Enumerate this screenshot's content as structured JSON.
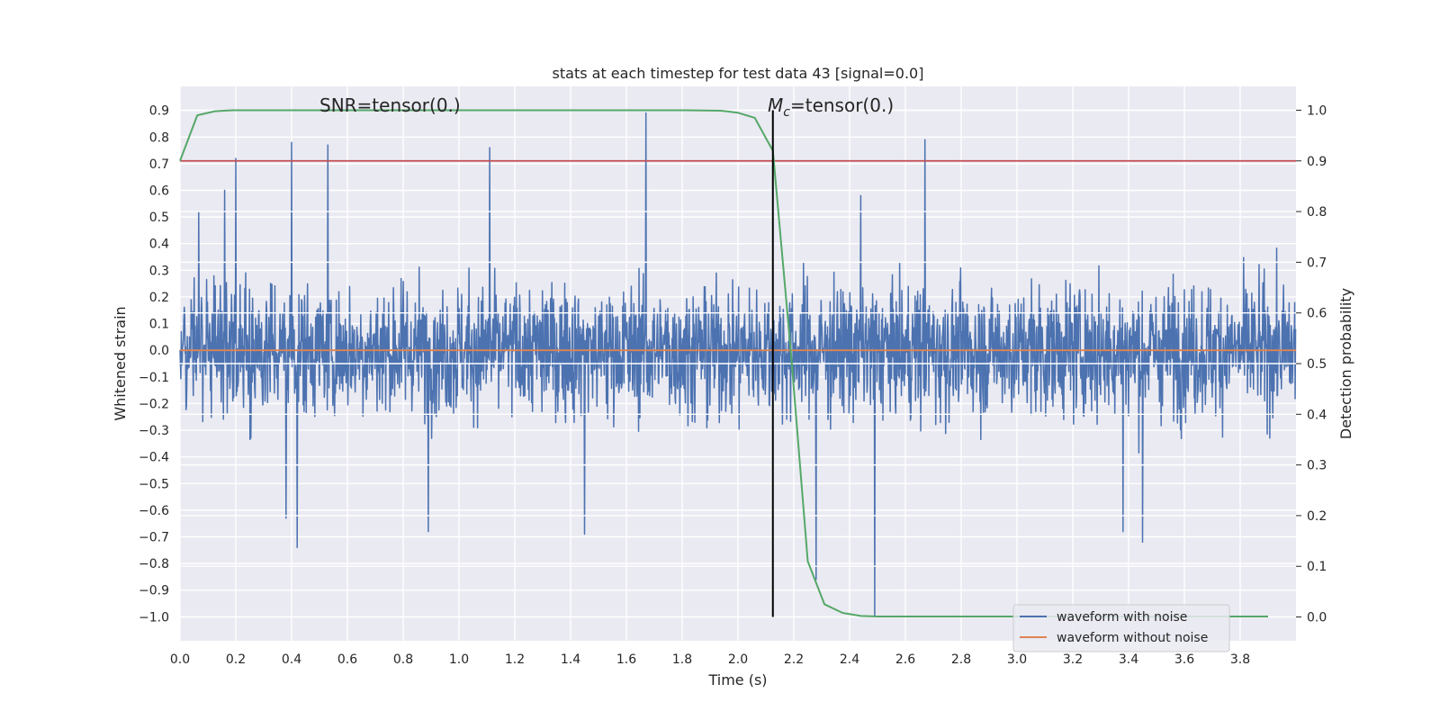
{
  "chart_data": {
    "type": "line",
    "title": "stats at each timestep for test data 43 [signal=0.0]",
    "xlabel": "Time (s)",
    "ylabel": "Whitened strain",
    "y2label": "Detection probability",
    "xlim": [
      0.0,
      4.0
    ],
    "ylim": [
      -1.09,
      0.99
    ],
    "y2lim": [
      -0.047,
      1.047
    ],
    "grid": true,
    "x_ticks": [
      "0.0",
      "0.2",
      "0.4",
      "0.6",
      "0.8",
      "1.0",
      "1.2",
      "1.4",
      "1.6",
      "1.8",
      "2.0",
      "2.2",
      "2.4",
      "2.6",
      "2.8",
      "3.0",
      "3.2",
      "3.4",
      "3.6",
      "3.8"
    ],
    "y_ticks": [
      "0.9",
      "0.8",
      "0.7",
      "0.6",
      "0.5",
      "0.4",
      "0.3",
      "0.2",
      "0.1",
      "0.0",
      "−0.1",
      "−0.2",
      "−0.3",
      "−0.4",
      "−0.5",
      "−0.6",
      "−0.7",
      "−0.8",
      "−0.9",
      "−1.0"
    ],
    "y2_ticks": [
      "1.0",
      "0.9",
      "0.8",
      "0.7",
      "0.6",
      "0.5",
      "0.4",
      "0.3",
      "0.2",
      "0.1",
      "0.0"
    ],
    "annotations": {
      "snr": "SNR=tensor(0.)",
      "mc_symbol": "M",
      "mc_sub": "c",
      "mc_value": "=tensor(0.)"
    },
    "marker_time": 2.125,
    "threshold": 0.9,
    "noise_series": {
      "name": "waveform with noise",
      "color": "#4c72b0",
      "x_start": 0.0,
      "x_end": 4.0,
      "notable_peaks": [
        {
          "x": 0.067,
          "y": 0.52
        },
        {
          "x": 0.16,
          "y": 0.6
        },
        {
          "x": 0.2,
          "y": 0.72
        },
        {
          "x": 0.4,
          "y": 0.78
        },
        {
          "x": 0.53,
          "y": 0.77
        },
        {
          "x": 1.11,
          "y": 0.76
        },
        {
          "x": 1.67,
          "y": 0.89
        },
        {
          "x": 2.67,
          "y": 0.79
        },
        {
          "x": 2.44,
          "y": 0.58
        },
        {
          "x": 0.42,
          "y": -0.74
        },
        {
          "x": 0.89,
          "y": -0.68
        },
        {
          "x": 1.45,
          "y": -0.69
        },
        {
          "x": 2.28,
          "y": -0.86
        },
        {
          "x": 2.49,
          "y": -1.0
        },
        {
          "x": 3.45,
          "y": -0.72
        },
        {
          "x": 3.38,
          "y": -0.68
        },
        {
          "x": 0.38,
          "y": -0.63
        }
      ],
      "typical_amplitude": 0.45
    },
    "clean_series": {
      "name": "waveform without noise",
      "color": "#dd8452",
      "x": [
        0.0,
        4.0
      ],
      "y": [
        0.0,
        0.0
      ]
    },
    "probability_series": {
      "name": "",
      "color": "#55a868",
      "x": [
        0.0,
        0.062,
        0.125,
        0.188,
        1.5,
        1.8,
        1.94,
        2.0,
        2.06,
        2.125,
        2.19,
        2.25,
        2.31,
        2.375,
        2.44,
        2.5,
        3.9
      ],
      "y": [
        0.9,
        0.99,
        0.998,
        1.0,
        1.0,
        1.0,
        0.999,
        0.995,
        0.985,
        0.92,
        0.52,
        0.11,
        0.025,
        0.008,
        0.002,
        0.001,
        0.001
      ]
    },
    "threshold_color": "#c44e52",
    "legend": {
      "placement": "lower-right",
      "entries": [
        "waveform with noise",
        "waveform without noise"
      ]
    }
  }
}
